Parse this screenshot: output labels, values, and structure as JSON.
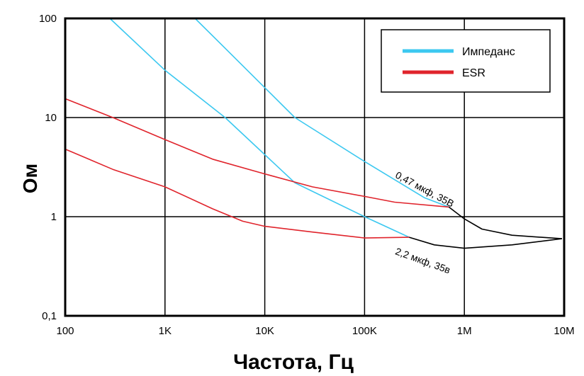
{
  "chart_data": {
    "type": "line",
    "title": "",
    "xlabel": "Частота, Гц",
    "ylabel": "Ом",
    "x_scale": "log",
    "y_scale": "log",
    "xlim": [
      100,
      10000000
    ],
    "ylim": [
      0.1,
      100
    ],
    "x_ticks": [
      {
        "value": 100,
        "label": "100"
      },
      {
        "value": 1000,
        "label": "1K"
      },
      {
        "value": 10000,
        "label": "10K"
      },
      {
        "value": 100000,
        "label": "100K"
      },
      {
        "value": 1000000,
        "label": "1M"
      },
      {
        "value": 10000000,
        "label": "10M"
      }
    ],
    "y_ticks": [
      {
        "value": 0.1,
        "label": "0,1"
      },
      {
        "value": 1,
        "label": "1"
      },
      {
        "value": 10,
        "label": "10"
      },
      {
        "value": 100,
        "label": "100"
      }
    ],
    "grid": true,
    "legend": {
      "placement": "top-right",
      "entries": [
        {
          "label": "Импеданс",
          "color": "#3cc8f0"
        },
        {
          "label": "ESR",
          "color": "#e0242c"
        }
      ]
    },
    "series": [
      {
        "legend": "Импеданс",
        "color": "#3cc8f0",
        "x": [
          2000,
          4000,
          20000,
          100000,
          400000,
          700000
        ],
        "y": [
          100,
          50,
          10,
          3.6,
          1.55,
          1.25
        ]
      },
      {
        "legend": "Импеданс",
        "color": "#3cc8f0",
        "x": [
          280,
          1000,
          4000,
          20000,
          100000,
          280000
        ],
        "y": [
          100,
          30,
          10,
          2.2,
          1.0,
          0.62
        ]
      },
      {
        "legend": "ESR",
        "color": "#e0242c",
        "x": [
          100,
          300,
          1000,
          3000,
          10000,
          30000,
          100000,
          200000,
          700000
        ],
        "y": [
          15.5,
          10,
          6,
          3.8,
          2.7,
          2.0,
          1.6,
          1.4,
          1.25
        ]
      },
      {
        "legend": "ESR",
        "color": "#e0242c",
        "x": [
          100,
          300,
          1000,
          3000,
          6000,
          10000,
          30000,
          100000,
          280000
        ],
        "y": [
          4.8,
          3.0,
          2.0,
          1.2,
          0.9,
          0.8,
          0.7,
          0.61,
          0.62
        ]
      },
      {
        "legend": "",
        "color": "#000000",
        "x": [
          700000,
          1000000,
          1500000,
          3000000,
          9500000
        ],
        "y": [
          1.25,
          0.95,
          0.75,
          0.65,
          0.6
        ]
      },
      {
        "legend": "",
        "color": "#000000",
        "x": [
          280000,
          500000,
          1000000,
          3000000,
          9500000
        ],
        "y": [
          0.62,
          0.52,
          0.48,
          0.52,
          0.6
        ]
      }
    ],
    "annotations": [
      {
        "text": "0,47 мкф, 35В",
        "x": 200000,
        "y": 2.5,
        "rotation": 28
      },
      {
        "text": "2,2 мкф, 35в",
        "x": 200000,
        "y": 0.42,
        "rotation": 20
      }
    ]
  }
}
